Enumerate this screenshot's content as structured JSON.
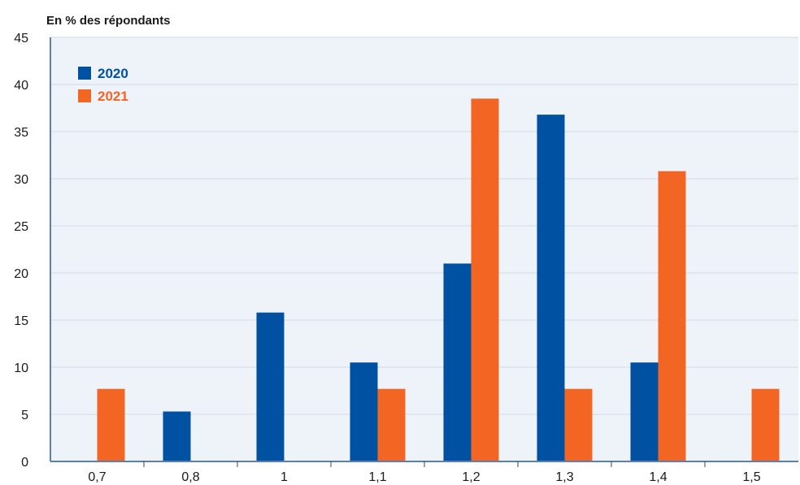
{
  "chart_data": {
    "type": "bar",
    "ylabel": "En % des répondants",
    "xlabel": "",
    "title": "",
    "ylim": [
      0,
      45
    ],
    "yticks": [
      0,
      5,
      10,
      15,
      20,
      25,
      30,
      35,
      40,
      45
    ],
    "categories": [
      "0,7",
      "0,8",
      "1",
      "1,1",
      "1,2",
      "1,3",
      "1,4",
      "1,5"
    ],
    "series": [
      {
        "name": "2020",
        "color": "#0051a2",
        "values": [
          0,
          5.3,
          15.8,
          10.5,
          21.0,
          36.8,
          10.5,
          0
        ]
      },
      {
        "name": "2021",
        "color": "#f26522",
        "values": [
          7.7,
          0,
          0,
          7.7,
          38.5,
          7.7,
          30.8,
          7.7
        ]
      }
    ],
    "grid": true,
    "legend_position": "top-left",
    "background": "#eef3fa",
    "axis_color": "#5b80b9"
  }
}
